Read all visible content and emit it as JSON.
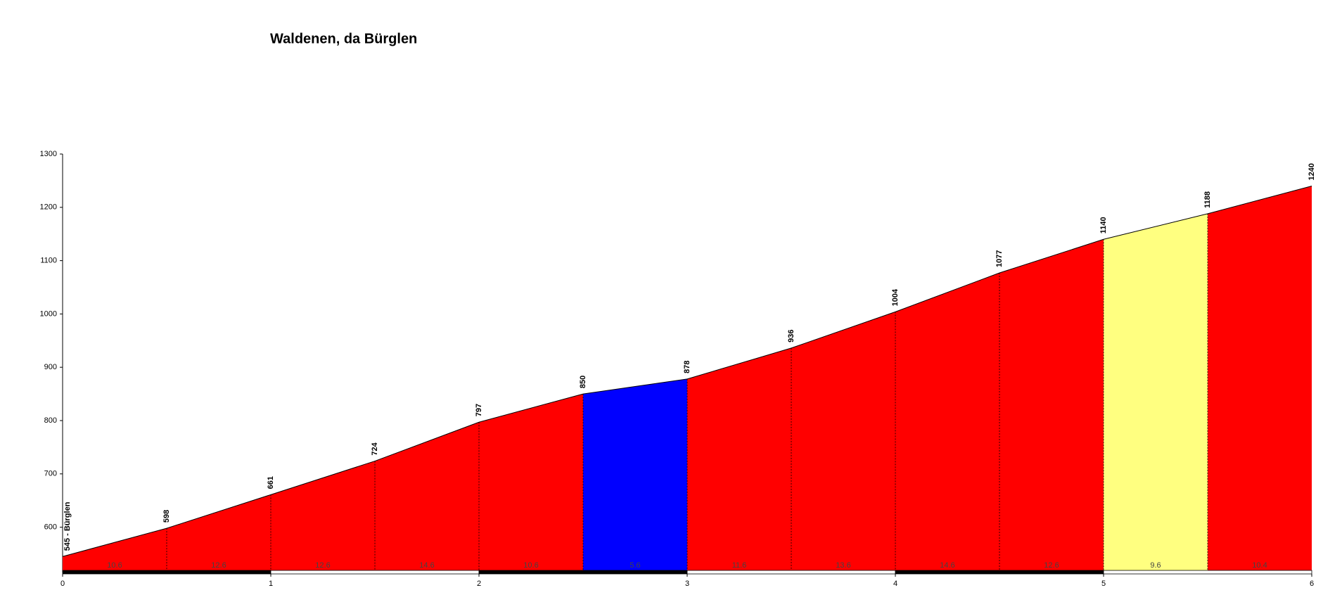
{
  "chart_data": {
    "type": "profile",
    "title": "Waldenen, da Bürglen",
    "x": [
      0,
      0.5,
      1,
      1.5,
      2,
      2.5,
      3,
      3.5,
      4,
      4.5,
      5,
      5.5,
      6
    ],
    "values": [
      545,
      598,
      661,
      724,
      797,
      850,
      878,
      936,
      1004,
      1077,
      1140,
      1188,
      1240
    ],
    "value_labels": [
      "545 - Bürglen",
      "598",
      "661",
      "724",
      "797",
      "850",
      "878",
      "936",
      "1004",
      "1077",
      "1140",
      "1188",
      "1240"
    ],
    "segments": {
      "grades": [
        10.6,
        12.6,
        12.6,
        14.6,
        10.6,
        5.6,
        11.6,
        13.6,
        14.6,
        12.6,
        9.6,
        10.4
      ],
      "colors": [
        "#ff0000",
        "#ff0000",
        "#ff0000",
        "#ff0000",
        "#ff0000",
        "#0000ff",
        "#ff0000",
        "#ff0000",
        "#ff0000",
        "#ff0000",
        "#ffff80",
        "#ff0000"
      ]
    },
    "xlim": [
      0,
      6
    ],
    "xticks": [
      0,
      1,
      2,
      3,
      4,
      5,
      6
    ],
    "ylim": [
      515,
      1300
    ],
    "yticks": [
      600,
      700,
      800,
      900,
      1000,
      1100,
      1200,
      1300
    ]
  }
}
